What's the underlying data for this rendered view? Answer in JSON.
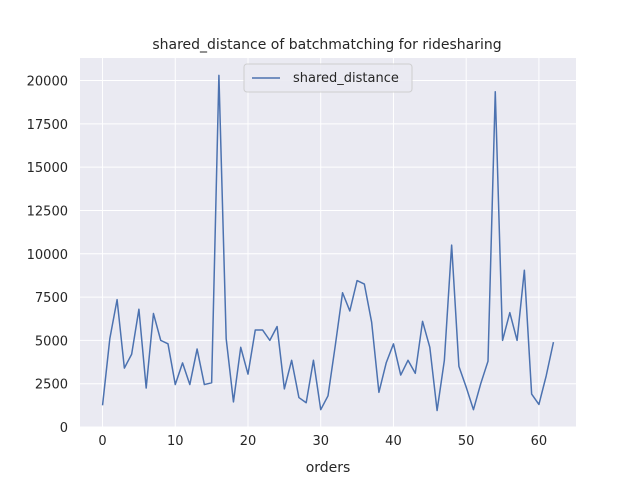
{
  "chart_data": {
    "type": "line",
    "title": "shared_distance of batchmatching for ridesharing",
    "xlabel": "orders",
    "ylabel": "",
    "xlim": [
      -3.1,
      65.1
    ],
    "ylim": [
      0,
      21300
    ],
    "xticks": [
      0,
      10,
      20,
      30,
      40,
      50,
      60
    ],
    "yticks": [
      0,
      2500,
      5000,
      7500,
      10000,
      12500,
      15000,
      17500,
      20000
    ],
    "grid": true,
    "legend": {
      "position": "top-center",
      "entries": [
        "shared_distance"
      ]
    },
    "colors": {
      "line": "#4c72b0",
      "axes_bg": "#eaeaf2",
      "grid": "#ffffff"
    },
    "series": [
      {
        "name": "shared_distance",
        "x": [
          0,
          1,
          2,
          3,
          4,
          5,
          6,
          7,
          8,
          9,
          10,
          11,
          12,
          13,
          14,
          15,
          16,
          17,
          18,
          19,
          20,
          21,
          22,
          23,
          24,
          25,
          26,
          27,
          28,
          29,
          30,
          31,
          32,
          33,
          34,
          35,
          36,
          37,
          38,
          39,
          40,
          41,
          42,
          43,
          44,
          45,
          46,
          47,
          48,
          49,
          50,
          51,
          52,
          53,
          54,
          55,
          56,
          57,
          58,
          59,
          60,
          61,
          62
        ],
        "values": [
          1250,
          5100,
          7350,
          3400,
          4200,
          6800,
          2250,
          6550,
          5000,
          4800,
          2450,
          3700,
          2450,
          4500,
          2450,
          2550,
          20300,
          5100,
          1450,
          4600,
          3050,
          5600,
          5600,
          5000,
          5800,
          2200,
          3850,
          1700,
          1400,
          3850,
          1000,
          1800,
          4700,
          7750,
          6700,
          8450,
          8250,
          6050,
          2000,
          3700,
          4800,
          3000,
          3850,
          3100,
          6100,
          4600,
          950,
          3850,
          10500,
          3500,
          2300,
          1000,
          2500,
          3800,
          19350,
          5000,
          6600,
          5000,
          9050,
          1900,
          1300,
          2950,
          4900
        ]
      }
    ]
  }
}
